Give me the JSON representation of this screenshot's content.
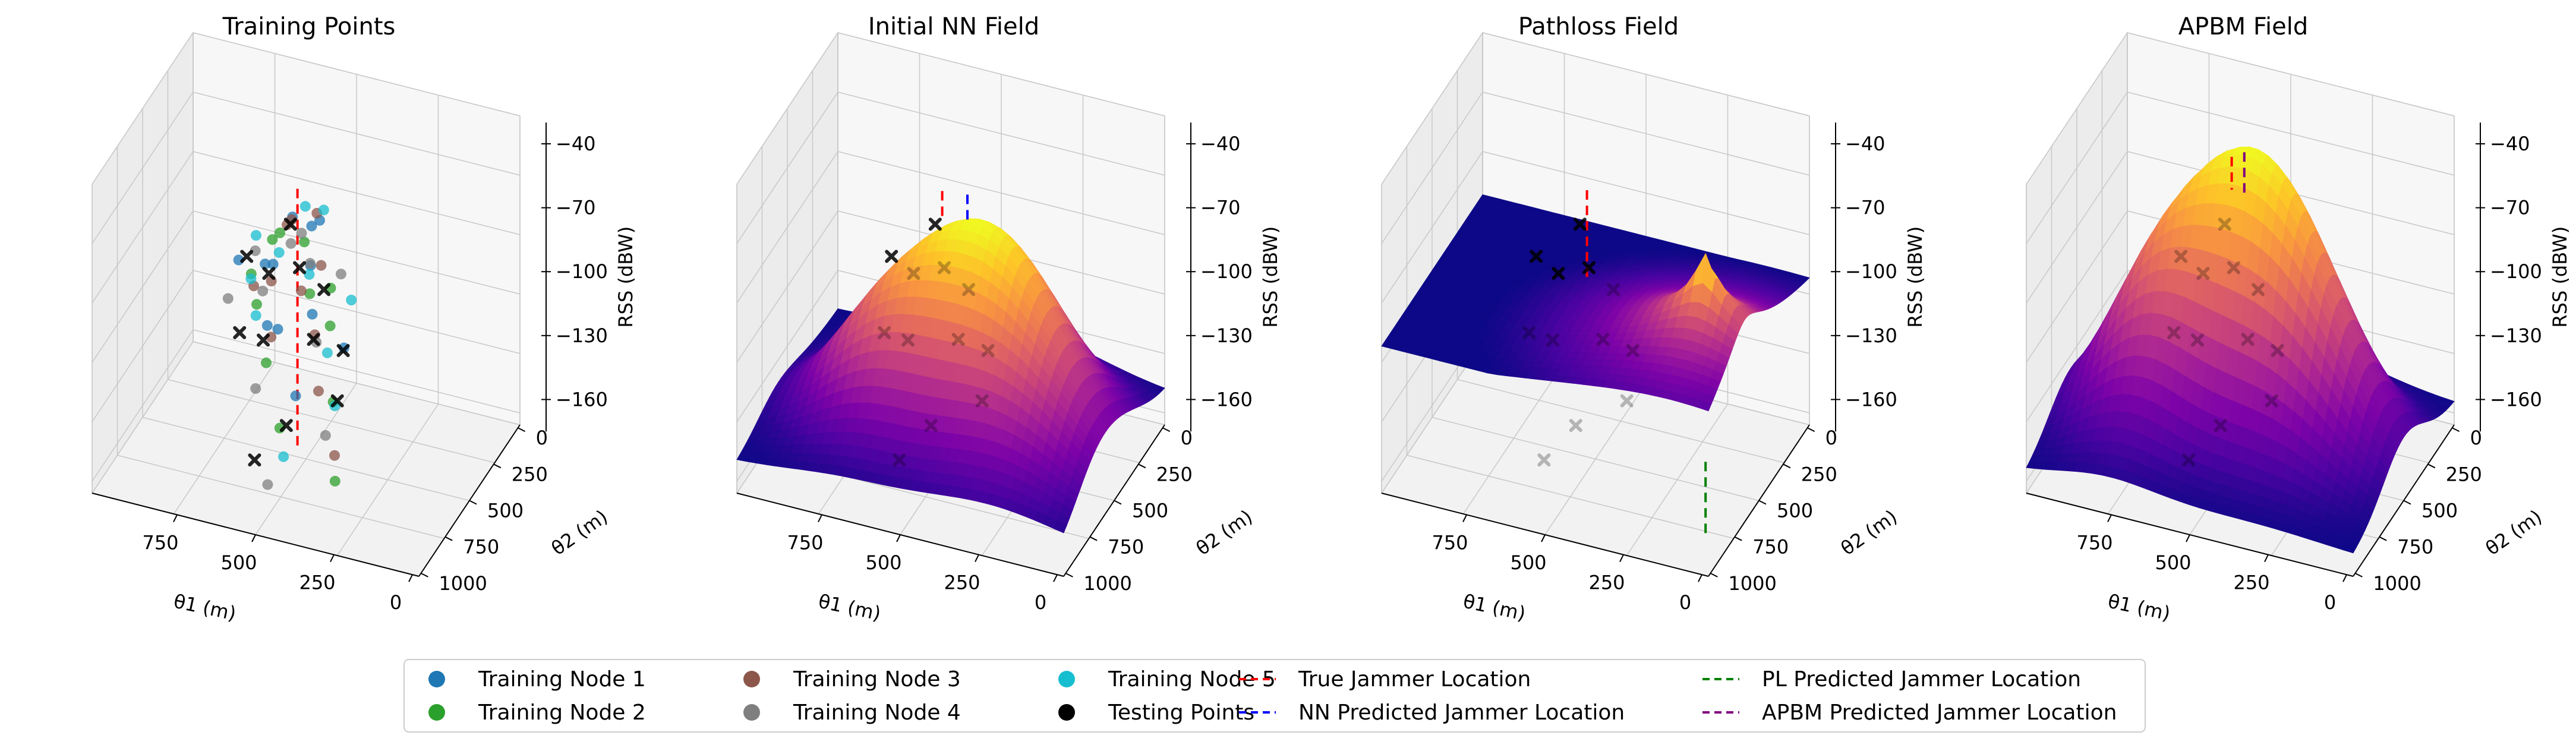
{
  "chart_data": [
    {
      "type": "scatter3d",
      "title": "Training Points",
      "xlabel": "θ1 (m)",
      "ylabel": "θ2 (m)",
      "zlabel": "RSS (dBW)",
      "xlim": [
        0,
        1000
      ],
      "ylim": [
        0,
        1000
      ],
      "zlim": [
        -175,
        -30
      ],
      "x_ticks": [
        750,
        500,
        250,
        0
      ],
      "y_ticks": [
        0,
        250,
        500,
        750,
        1000
      ],
      "z_ticks": [
        -40,
        -70,
        -100,
        -130,
        -160
      ],
      "series": [
        {
          "name": "Training Node 1",
          "points": [
            [
              560,
              440,
              -68
            ],
            [
              520,
              380,
              -75
            ],
            [
              480,
              520,
              -82
            ],
            [
              610,
              470,
              -90
            ],
            [
              450,
              600,
              -98
            ],
            [
              540,
              650,
              -105
            ],
            [
              600,
              560,
              -112
            ],
            [
              390,
              480,
              -120
            ],
            [
              470,
              700,
              -130
            ],
            [
              650,
              420,
              -95
            ],
            [
              520,
              300,
              -78
            ],
            [
              700,
              520,
              -88
            ]
          ]
        },
        {
          "name": "Training Node 2",
          "points": [
            [
              580,
              500,
              -72
            ],
            [
              530,
              420,
              -80
            ],
            [
              470,
              560,
              -92
            ],
            [
              620,
              600,
              -100
            ],
            [
              420,
              520,
              -108
            ],
            [
              560,
              700,
              -118
            ],
            [
              680,
              460,
              -98
            ],
            [
              380,
              620,
              -135
            ],
            [
              500,
              760,
              -142
            ],
            [
              300,
              860,
              -152
            ],
            [
              640,
              380,
              -86
            ],
            [
              440,
              450,
              -96
            ]
          ]
        },
        {
          "name": "Training Node 3",
          "points": [
            [
              550,
              480,
              -66
            ],
            [
              510,
              360,
              -70
            ],
            [
              460,
              480,
              -84
            ],
            [
              600,
              520,
              -94
            ],
            [
              430,
              640,
              -104
            ],
            [
              570,
              620,
              -112
            ],
            [
              660,
              500,
              -100
            ],
            [
              400,
              700,
              -125
            ],
            [
              320,
              800,
              -145
            ],
            [
              490,
              580,
              -90
            ],
            [
              620,
              300,
              -84
            ]
          ]
        },
        {
          "name": "Training Node 4",
          "points": [
            [
              540,
              520,
              -74
            ],
            [
              500,
              460,
              -86
            ],
            [
              620,
              540,
              -98
            ],
            [
              450,
              560,
              -114
            ],
            [
              580,
              740,
              -128
            ],
            [
              680,
              420,
              -90
            ],
            [
              360,
              760,
              -140
            ],
            [
              500,
              880,
              -160
            ],
            [
              430,
              380,
              -94
            ],
            [
              720,
              560,
              -104
            ],
            [
              560,
              350,
              -82
            ]
          ]
        },
        {
          "name": "Training Node 5",
          "points": [
            [
              530,
              410,
              -64
            ],
            [
              570,
              540,
              -78
            ],
            [
              490,
              500,
              -88
            ],
            [
              610,
              640,
              -102
            ],
            [
              410,
              580,
              -116
            ],
            [
              650,
              560,
              -92
            ],
            [
              350,
              700,
              -130
            ],
            [
              470,
              820,
              -150
            ],
            [
              690,
              380,
              -86
            ],
            [
              380,
              440,
              -100
            ],
            [
              520,
              260,
              -76
            ]
          ]
        }
      ],
      "testing_points": [
        [
          560,
          460,
          -70
        ],
        [
          520,
          500,
          -86
        ],
        [
          620,
          480,
          -94
        ],
        [
          470,
          420,
          -100
        ],
        [
          440,
          620,
          -108
        ],
        [
          600,
          600,
          -116
        ],
        [
          700,
          440,
          -92
        ],
        [
          660,
          640,
          -112
        ],
        [
          380,
          520,
          -118
        ],
        [
          330,
          740,
          -124
        ],
        [
          540,
          880,
          -150
        ],
        [
          480,
          760,
          -140
        ]
      ],
      "jammer": {
        "true_location": [
          520,
          520
        ]
      }
    },
    {
      "type": "surface3d",
      "title": "Initial NN Field",
      "xlabel": "θ1 (m)",
      "ylabel": "θ2 (m)",
      "zlabel": "RSS (dBW)",
      "xlim": [
        0,
        1000
      ],
      "ylim": [
        0,
        1000
      ],
      "zlim": [
        -175,
        -30
      ],
      "x_ticks": [
        750,
        500,
        250,
        0
      ],
      "y_ticks": [
        0,
        250,
        500,
        750,
        1000
      ],
      "z_ticks": [
        -40,
        -70,
        -100,
        -130,
        -160
      ],
      "surface": {
        "model": "nn",
        "base": -160,
        "peaks": [
          {
            "x": 420,
            "y": 420,
            "amp": 85,
            "sx": 220,
            "sy": 220
          },
          {
            "x": 700,
            "y": 620,
            "amp": 35,
            "sx": 160,
            "sy": 180
          },
          {
            "x": 200,
            "y": 700,
            "amp": 25,
            "sx": 200,
            "sy": 200
          }
        ]
      },
      "testing_points": [
        [
          560,
          460,
          -70
        ],
        [
          520,
          500,
          -86
        ],
        [
          620,
          480,
          -94
        ],
        [
          470,
          420,
          -100
        ],
        [
          440,
          620,
          -108
        ],
        [
          600,
          600,
          -116
        ],
        [
          700,
          440,
          -92
        ],
        [
          660,
          640,
          -112
        ],
        [
          380,
          520,
          -118
        ],
        [
          330,
          740,
          -124
        ],
        [
          540,
          880,
          -150
        ],
        [
          480,
          760,
          -140
        ]
      ],
      "jammer": {
        "true_location": [
          520,
          520
        ],
        "predicted_location": [
          480,
          400
        ],
        "predicted_label": "NN Predicted Jammer Location"
      }
    },
    {
      "type": "surface3d",
      "title": "Pathloss Field",
      "xlabel": "θ1 (m)",
      "ylabel": "θ2 (m)",
      "zlabel": "RSS (dBW)",
      "xlim": [
        0,
        1000
      ],
      "ylim": [
        0,
        1000
      ],
      "zlim": [
        -175,
        -30
      ],
      "x_ticks": [
        750,
        500,
        250,
        0
      ],
      "y_ticks": [
        0,
        250,
        500,
        750,
        1000
      ],
      "z_ticks": [
        -40,
        -70,
        -100,
        -130,
        -160
      ],
      "surface": {
        "model": "pathloss",
        "base": -100,
        "source": {
          "x": 120,
          "y": 640
        },
        "peak": -48,
        "falloff": 38
      },
      "testing_points": [
        [
          560,
          460,
          -70
        ],
        [
          520,
          500,
          -86
        ],
        [
          620,
          480,
          -94
        ],
        [
          470,
          420,
          -100
        ],
        [
          440,
          620,
          -108
        ],
        [
          600,
          600,
          -116
        ],
        [
          700,
          440,
          -92
        ],
        [
          660,
          640,
          -112
        ],
        [
          380,
          520,
          -118
        ],
        [
          330,
          740,
          -124
        ],
        [
          540,
          880,
          -150
        ],
        [
          480,
          760,
          -140
        ]
      ],
      "jammer": {
        "true_location": [
          520,
          520
        ],
        "predicted_location": [
          120,
          640
        ],
        "predicted_label": "PL Predicted Jammer Location"
      }
    },
    {
      "type": "surface3d",
      "title": "APBM Field",
      "xlabel": "θ1 (m)",
      "ylabel": "θ2 (m)",
      "zlabel": "RSS (dBW)",
      "xlim": [
        0,
        1000
      ],
      "ylim": [
        0,
        1000
      ],
      "zlim": [
        -175,
        -30
      ],
      "x_ticks": [
        750,
        500,
        250,
        0
      ],
      "y_ticks": [
        0,
        250,
        500,
        750,
        1000
      ],
      "z_ticks": [
        -40,
        -70,
        -100,
        -130,
        -160
      ],
      "surface": {
        "model": "nn",
        "base": -165,
        "peaks": [
          {
            "x": 500,
            "y": 420,
            "amp": 110,
            "sx": 200,
            "sy": 200
          },
          {
            "x": 760,
            "y": 600,
            "amp": 50,
            "sx": 150,
            "sy": 200
          },
          {
            "x": 250,
            "y": 520,
            "amp": 40,
            "sx": 180,
            "sy": 200
          }
        ]
      },
      "testing_points": [
        [
          560,
          460,
          -70
        ],
        [
          520,
          500,
          -86
        ],
        [
          620,
          480,
          -94
        ],
        [
          470,
          420,
          -100
        ],
        [
          440,
          620,
          -108
        ],
        [
          600,
          600,
          -116
        ],
        [
          700,
          440,
          -92
        ],
        [
          660,
          640,
          -112
        ],
        [
          380,
          520,
          -118
        ],
        [
          330,
          740,
          -124
        ],
        [
          540,
          880,
          -150
        ],
        [
          480,
          760,
          -140
        ]
      ],
      "jammer": {
        "true_location": [
          520,
          520
        ],
        "predicted_location": [
          500,
          460
        ],
        "predicted_label": "APBM Predicted Jammer Location"
      }
    }
  ],
  "legend": {
    "placement": "bottom-center",
    "entries": [
      {
        "label": "Training Node 1",
        "kind": "marker",
        "color": "#1f77b4"
      },
      {
        "label": "Training Node 2",
        "kind": "marker",
        "color": "#2ca02c"
      },
      {
        "label": "Training Node 3",
        "kind": "marker",
        "color": "#8c564b"
      },
      {
        "label": "Training Node 4",
        "kind": "marker",
        "color": "#7f7f7f"
      },
      {
        "label": "Training Node 5",
        "kind": "marker",
        "color": "#17becf"
      },
      {
        "label": "Testing Points",
        "kind": "marker",
        "color": "#000000"
      },
      {
        "label": "True Jammer Location",
        "kind": "dashed",
        "color": "#ff0000"
      },
      {
        "label": "NN Predicted Jammer Location",
        "kind": "dashed",
        "color": "#0000ff"
      },
      {
        "label": "PL Predicted Jammer Location",
        "kind": "dashed",
        "color": "#008000"
      },
      {
        "label": "APBM Predicted Jammer Location",
        "kind": "dashed",
        "color": "#800080"
      }
    ]
  },
  "colors": {
    "series": [
      "#1f77b4",
      "#2ca02c",
      "#8c564b",
      "#7f7f7f",
      "#17becf"
    ],
    "testing": "#000000",
    "colormap": "plasma"
  }
}
